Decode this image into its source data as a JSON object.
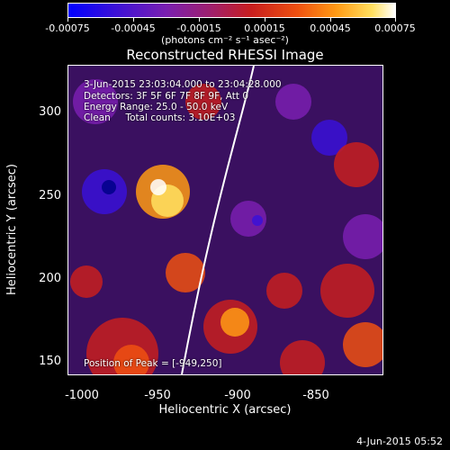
{
  "colorbar": {
    "ticks": [
      "-0.00075",
      "-0.00045",
      "-0.00015",
      "0.00015",
      "0.00045",
      "0.00075"
    ],
    "units": "(photons cm⁻² s⁻¹ asec⁻²)"
  },
  "title": "Reconstructed RHESSI Image",
  "info": {
    "time": "3-Jun-2015 23:03:04.000 to 23:04:28.000",
    "detectors": "Detectors: 3F 5F 6F 7F 8F 9F, Att 0",
    "energy": "Energy Range: 25.0 - 50.0 keV",
    "clean": "Clean     Total counts: 3.10E+03",
    "peak": "Position of Peak = [-949,250]"
  },
  "axes": {
    "xlabel": "Heliocentric X (arcsec)",
    "ylabel": "Heliocentric Y (arcsec)",
    "xticks": [
      "-1000",
      "-950",
      "-900",
      "-850"
    ],
    "yticks": [
      "300",
      "250",
      "200",
      "150"
    ]
  },
  "footer_date": "4-Jun-2015 05:52"
}
